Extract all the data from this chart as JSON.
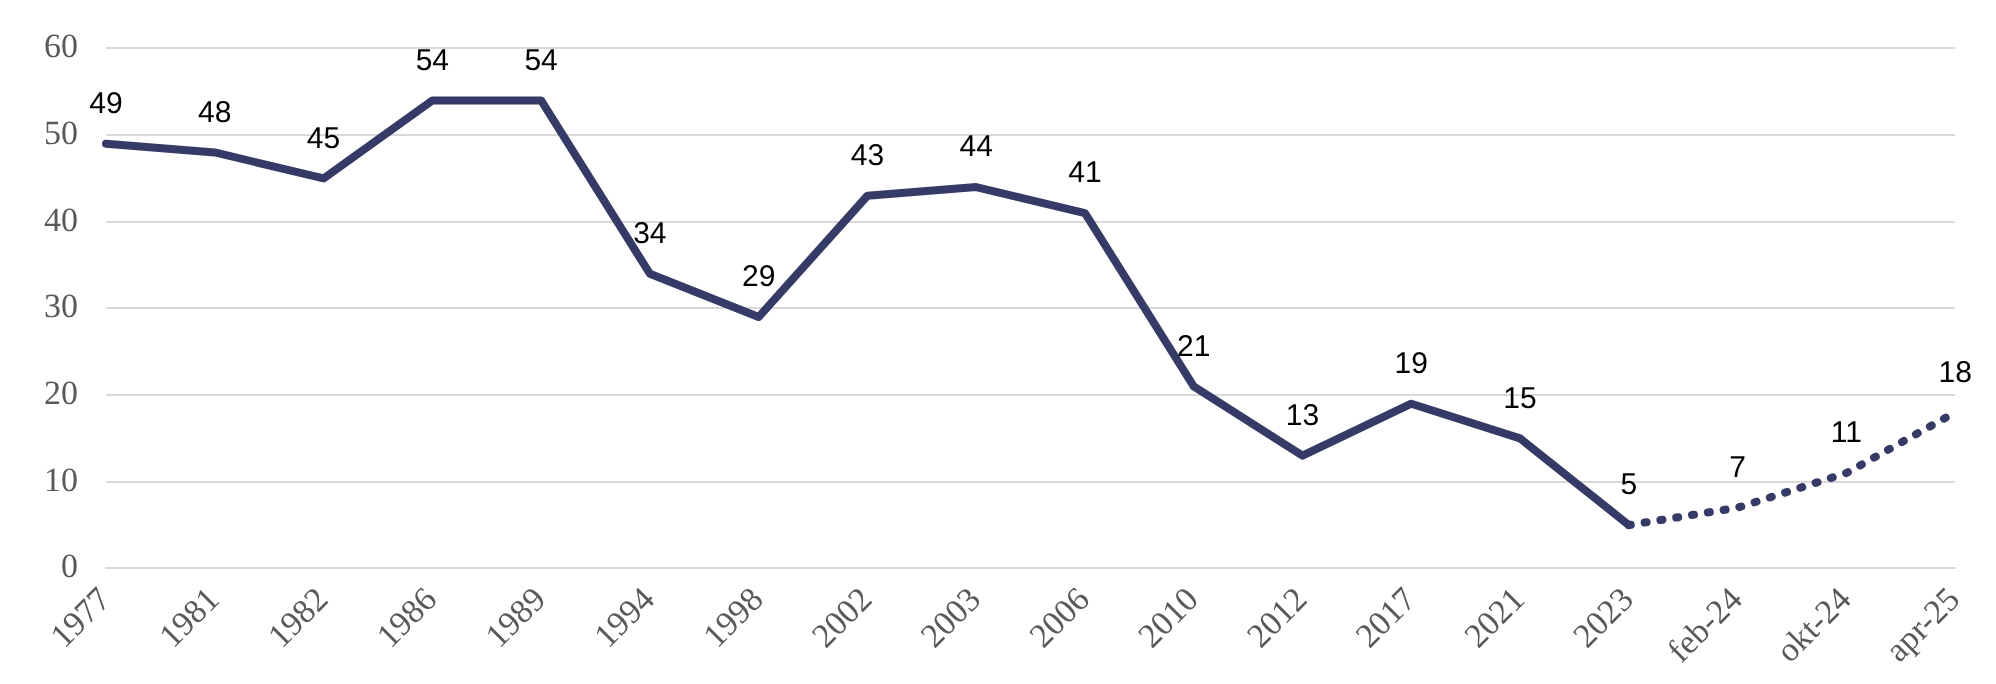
{
  "chart_data": {
    "type": "line",
    "categories": [
      "1977",
      "1981",
      "1982",
      "1986",
      "1989",
      "1994",
      "1998",
      "2002",
      "2003",
      "2006",
      "2010",
      "2012",
      "2017",
      "2021",
      "2023",
      "feb-24",
      "okt-24",
      "apr-25"
    ],
    "series": [
      {
        "color": "#363a66",
        "line_style": "solid",
        "values": [
          49,
          48,
          45,
          54,
          54,
          34,
          29,
          43,
          44,
          41,
          21,
          13,
          19,
          15,
          5,
          null,
          null,
          null
        ],
        "value_labels": [
          "49",
          "48",
          "45",
          "54",
          "54",
          "34",
          "29",
          "43",
          "44",
          "41",
          "21",
          "13",
          "19",
          "15",
          "5",
          null,
          null,
          null
        ]
      },
      {
        "color": "#363a66",
        "line_style": "dotted",
        "values": [
          null,
          null,
          null,
          null,
          null,
          null,
          null,
          null,
          null,
          null,
          null,
          null,
          null,
          null,
          5,
          7,
          11,
          18
        ],
        "value_labels": [
          null,
          null,
          null,
          null,
          null,
          null,
          null,
          null,
          null,
          null,
          null,
          null,
          null,
          null,
          null,
          "7",
          "11",
          "18"
        ]
      }
    ],
    "ylim": [
      0,
      60
    ],
    "yticks": [
      0,
      10,
      20,
      30,
      40,
      50,
      60
    ],
    "grid": "y",
    "legend": false,
    "marker": "none"
  }
}
